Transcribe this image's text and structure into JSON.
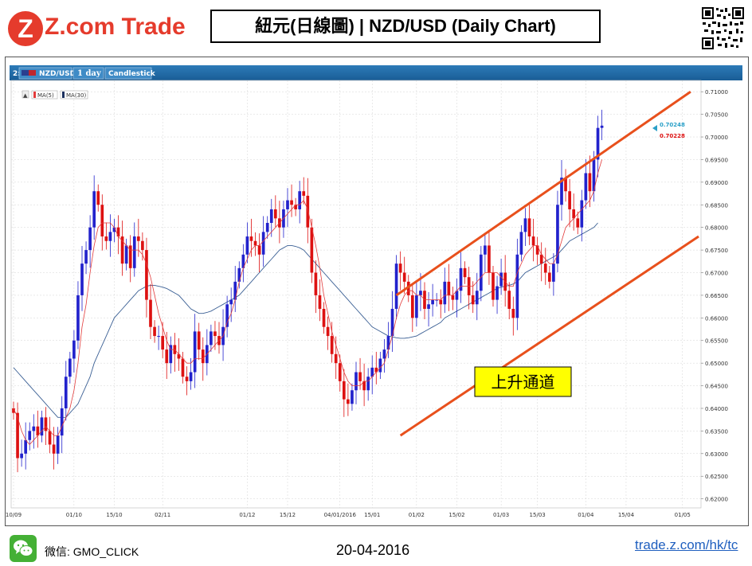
{
  "header": {
    "logo_text": "Z.com Trade",
    "title": "紐元(日線圖) | NZD/USD (Daily Chart)"
  },
  "toolbar": {
    "index": "2:",
    "symbol": "NZD/USD",
    "interval": "1 day",
    "chart_type": "Candlestick"
  },
  "legend": {
    "ma5": "MA(5)",
    "ma30": "MA(30)"
  },
  "annotation": {
    "channel_label": "上升通道"
  },
  "price_labels": {
    "upper": "0.70248",
    "lower": "0.70228"
  },
  "colors": {
    "up": "#2222cc",
    "down": "#dd1111",
    "ma5": "#e23b3b",
    "ma30": "#3a5f94",
    "channel": "#e8501c",
    "label_bg": "#ffff00"
  },
  "footer": {
    "wechat_icon": "wechat-icon",
    "wechat_id": "微信: GMO_CLICK",
    "date": "20-04-2016",
    "link": "trade.z.com/hk/tc"
  },
  "chart_data": {
    "type": "candlestick",
    "title": "紐元(日線圖) | NZD/USD (Daily Chart)",
    "y_ticks": [
      "0.71000",
      "0.70500",
      "0.70000",
      "0.69500",
      "0.69000",
      "0.68500",
      "0.68000",
      "0.67500",
      "0.67000",
      "0.66500",
      "0.66000",
      "0.65500",
      "0.65000",
      "0.64500",
      "0.64000",
      "0.63500",
      "0.63000",
      "0.62500",
      "0.62000"
    ],
    "ylim": [
      0.618,
      0.7125
    ],
    "x_ticks": [
      {
        "label": "10/09",
        "i": 0
      },
      {
        "label": "01/10",
        "i": 15
      },
      {
        "label": "15/10",
        "i": 25
      },
      {
        "label": "02/11",
        "i": 37
      },
      {
        "label": "01/12",
        "i": 58
      },
      {
        "label": "15/12",
        "i": 68
      },
      {
        "label": "04/01/2016",
        "i": 81
      },
      {
        "label": "15/01",
        "i": 89
      },
      {
        "label": "01/02",
        "i": 100
      },
      {
        "label": "15/02",
        "i": 110
      },
      {
        "label": "01/03",
        "i": 121
      },
      {
        "label": "15/03",
        "i": 130
      },
      {
        "label": "01/04",
        "i": 142
      },
      {
        "label": "15/04",
        "i": 152
      },
      {
        "label": "01/05",
        "i": 166
      }
    ],
    "x_count": 170,
    "candles_close": [
      0.639,
      0.629,
      0.63,
      0.633,
      0.635,
      0.636,
      0.634,
      0.638,
      0.635,
      0.632,
      0.63,
      0.634,
      0.64,
      0.647,
      0.651,
      0.655,
      0.665,
      0.672,
      0.675,
      0.68,
      0.688,
      0.685,
      0.678,
      0.677,
      0.679,
      0.68,
      0.678,
      0.672,
      0.676,
      0.671,
      0.678,
      0.677,
      0.675,
      0.664,
      0.658,
      0.656,
      0.656,
      0.653,
      0.65,
      0.654,
      0.652,
      0.651,
      0.647,
      0.646,
      0.648,
      0.657,
      0.653,
      0.65,
      0.654,
      0.657,
      0.656,
      0.654,
      0.658,
      0.663,
      0.664,
      0.668,
      0.671,
      0.674,
      0.678,
      0.677,
      0.676,
      0.674,
      0.679,
      0.681,
      0.684,
      0.682,
      0.68,
      0.684,
      0.686,
      0.685,
      0.684,
      0.688,
      0.687,
      0.68,
      0.67,
      0.665,
      0.662,
      0.658,
      0.656,
      0.652,
      0.65,
      0.646,
      0.642,
      0.641,
      0.644,
      0.648,
      0.646,
      0.644,
      0.647,
      0.649,
      0.648,
      0.651,
      0.653,
      0.656,
      0.662,
      0.672,
      0.67,
      0.668,
      0.665,
      0.66,
      0.665,
      0.666,
      0.662,
      0.663,
      0.664,
      0.664,
      0.663,
      0.668,
      0.665,
      0.664,
      0.666,
      0.671,
      0.669,
      0.665,
      0.663,
      0.666,
      0.674,
      0.676,
      0.67,
      0.664,
      0.667,
      0.67,
      0.666,
      0.662,
      0.66,
      0.674,
      0.679,
      0.682,
      0.678,
      0.676,
      0.674,
      0.672,
      0.67,
      0.668,
      0.672,
      0.685,
      0.691,
      0.688,
      0.684,
      0.682,
      0.68,
      0.686,
      0.692,
      0.688,
      0.695,
      0.702,
      0.7025
    ],
    "ma5": [
      0.64,
      0.638,
      0.635,
      0.633,
      0.632,
      0.633,
      0.634,
      0.635,
      0.636,
      0.635,
      0.634,
      0.634,
      0.636,
      0.638,
      0.64,
      0.644,
      0.65,
      0.658,
      0.663,
      0.67,
      0.676,
      0.68,
      0.681,
      0.681,
      0.681,
      0.68,
      0.678,
      0.677,
      0.676,
      0.675,
      0.675,
      0.675,
      0.674,
      0.672,
      0.669,
      0.665,
      0.661,
      0.658,
      0.655,
      0.653,
      0.653,
      0.652,
      0.651,
      0.65,
      0.65,
      0.651,
      0.651,
      0.651,
      0.652,
      0.653,
      0.654,
      0.655,
      0.656,
      0.659,
      0.661,
      0.664,
      0.668,
      0.671,
      0.673,
      0.675,
      0.676,
      0.676,
      0.677,
      0.678,
      0.679,
      0.68,
      0.681,
      0.682,
      0.683,
      0.684,
      0.685,
      0.685,
      0.686,
      0.684,
      0.68,
      0.676,
      0.671,
      0.665,
      0.661,
      0.657,
      0.654,
      0.651,
      0.648,
      0.646,
      0.645,
      0.645,
      0.645,
      0.646,
      0.646,
      0.647,
      0.648,
      0.649,
      0.65,
      0.653,
      0.656,
      0.66,
      0.663,
      0.665,
      0.666,
      0.666,
      0.665,
      0.665,
      0.664,
      0.664,
      0.664,
      0.664,
      0.664,
      0.665,
      0.665,
      0.665,
      0.666,
      0.667,
      0.667,
      0.667,
      0.667,
      0.668,
      0.669,
      0.67,
      0.67,
      0.67,
      0.67,
      0.669,
      0.668,
      0.667,
      0.667,
      0.67,
      0.672,
      0.674,
      0.675,
      0.676,
      0.676,
      0.674,
      0.673,
      0.672,
      0.672,
      0.674,
      0.677,
      0.68,
      0.681,
      0.682,
      0.683,
      0.684,
      0.685,
      0.686,
      0.688,
      0.692,
      0.695
    ],
    "ma30": [
      0.649,
      0.648,
      0.647,
      0.646,
      0.645,
      0.644,
      0.643,
      0.642,
      0.641,
      0.64,
      0.639,
      0.638,
      0.638,
      0.638,
      0.639,
      0.64,
      0.641,
      0.643,
      0.645,
      0.647,
      0.65,
      0.652,
      0.654,
      0.656,
      0.658,
      0.66,
      0.661,
      0.662,
      0.663,
      0.664,
      0.665,
      0.666,
      0.6665,
      0.667,
      0.6672,
      0.6672,
      0.667,
      0.6668,
      0.6665,
      0.666,
      0.6655,
      0.665,
      0.664,
      0.663,
      0.662,
      0.6615,
      0.661,
      0.661,
      0.6612,
      0.6615,
      0.662,
      0.6625,
      0.663,
      0.6635,
      0.664,
      0.6645,
      0.665,
      0.666,
      0.667,
      0.668,
      0.669,
      0.67,
      0.671,
      0.672,
      0.673,
      0.674,
      0.675,
      0.6755,
      0.676,
      0.676,
      0.6758,
      0.6755,
      0.675,
      0.674,
      0.673,
      0.672,
      0.671,
      0.67,
      0.669,
      0.668,
      0.667,
      0.666,
      0.665,
      0.664,
      0.663,
      0.662,
      0.661,
      0.66,
      0.659,
      0.658,
      0.6575,
      0.657,
      0.6565,
      0.656,
      0.6558,
      0.6556,
      0.6555,
      0.6555,
      0.6556,
      0.6558,
      0.656,
      0.6565,
      0.657,
      0.6575,
      0.658,
      0.6585,
      0.659,
      0.66,
      0.6605,
      0.661,
      0.6615,
      0.662,
      0.6625,
      0.663,
      0.6635,
      0.664,
      0.6645,
      0.665,
      0.6655,
      0.666,
      0.6665,
      0.6668,
      0.667,
      0.6672,
      0.6675,
      0.668,
      0.669,
      0.67,
      0.6705,
      0.671,
      0.6715,
      0.672,
      0.6725,
      0.673,
      0.6735,
      0.674,
      0.675,
      0.676,
      0.677,
      0.6775,
      0.678,
      0.6785,
      0.679,
      0.6795,
      0.68,
      0.681
    ],
    "channel_upper": [
      {
        "i": 95,
        "y": 0.665
      },
      {
        "i": 168,
        "y": 0.71
      }
    ],
    "channel_lower": [
      {
        "i": 96,
        "y": 0.634
      },
      {
        "i": 170,
        "y": 0.678
      }
    ]
  }
}
